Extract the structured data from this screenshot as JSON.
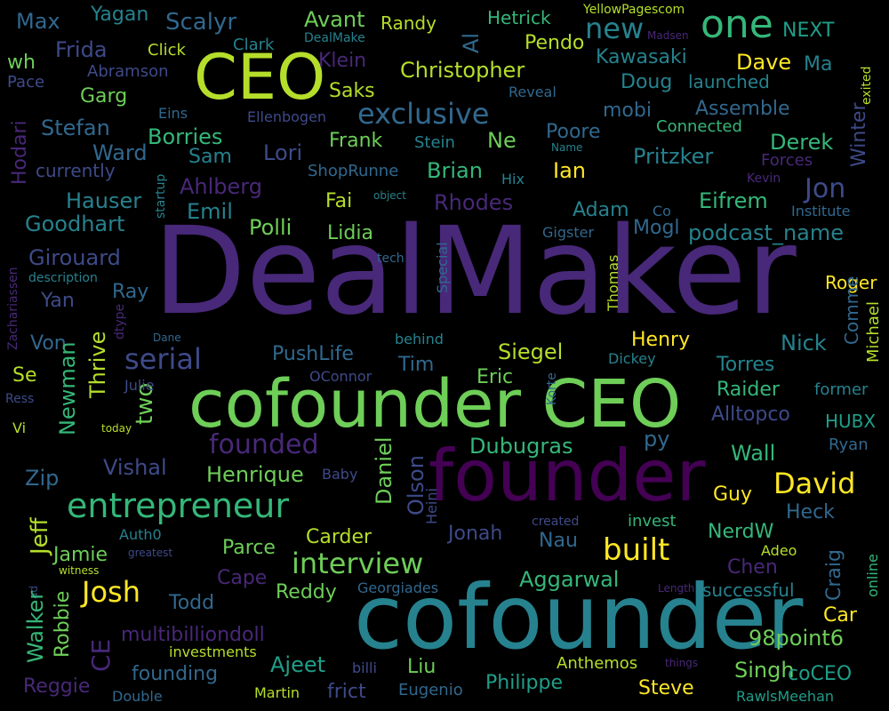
{
  "palette": {
    "purple_dark": "#440154",
    "indigo": "#482878",
    "blue_purple": "#3e4a89",
    "steel_blue": "#31688e",
    "teal_blue": "#26828e",
    "teal": "#1f9e89",
    "green_teal": "#35b779",
    "green": "#6ece58",
    "lime": "#b5de2b",
    "yellow": "#fde725",
    "background": "#000000"
  },
  "words": [
    {
      "text": "DealMaker",
      "color": "#482878"
    },
    {
      "text": "cofounder",
      "color": "#26828e"
    },
    {
      "text": "cofounder CEO",
      "color": "#6ece58"
    },
    {
      "text": "founder",
      "color": "#440154"
    },
    {
      "text": "CEO",
      "color": "#b5de2b"
    },
    {
      "text": "one",
      "color": "#35b779"
    },
    {
      "text": "entrepreneur",
      "color": "#35b779"
    },
    {
      "text": "interview",
      "color": "#6ece58"
    },
    {
      "text": "exclusive",
      "color": "#31688e"
    },
    {
      "text": "founded",
      "color": "#482878"
    },
    {
      "text": "David",
      "color": "#fde725"
    },
    {
      "text": "built",
      "color": "#fde725"
    },
    {
      "text": "Josh",
      "color": "#fde725"
    },
    {
      "text": "serial",
      "color": "#3e4a89"
    },
    {
      "text": "Jon",
      "color": "#3e4a89"
    },
    {
      "text": "new",
      "color": "#26828e"
    },
    {
      "text": "podcast_name",
      "color": "#26828e"
    },
    {
      "text": "Christopher",
      "color": "#b5de2b"
    },
    {
      "text": "Scalyr",
      "color": "#31688e"
    },
    {
      "text": "Avant",
      "color": "#6ece58"
    },
    {
      "text": "Max",
      "color": "#31688e"
    },
    {
      "text": "Yagan",
      "color": "#26828e"
    },
    {
      "text": "Randy",
      "color": "#b5de2b"
    },
    {
      "text": "Hetrick",
      "color": "#35b779"
    },
    {
      "text": "YellowPagescom",
      "color": "#b5de2b"
    },
    {
      "text": "NEXT",
      "color": "#1f9e89"
    },
    {
      "text": "DealMake",
      "color": "#26828e"
    },
    {
      "text": "Madsen",
      "color": "#482878"
    },
    {
      "text": "exited",
      "color": "#b5de2b"
    },
    {
      "text": "wh",
      "color": "#6ece58"
    },
    {
      "text": "Frida",
      "color": "#3e4a89"
    },
    {
      "text": "Click",
      "color": "#b5de2b"
    },
    {
      "text": "Clark",
      "color": "#26828e"
    },
    {
      "text": "Al",
      "color": "#31688e"
    },
    {
      "text": "Pendo",
      "color": "#b5de2b"
    },
    {
      "text": "Kawasaki",
      "color": "#26828e"
    },
    {
      "text": "Dave",
      "color": "#fde725"
    },
    {
      "text": "Ma",
      "color": "#26828e"
    },
    {
      "text": "Pace",
      "color": "#3e4a89"
    },
    {
      "text": "Abramson",
      "color": "#3e4a89"
    },
    {
      "text": "Klein",
      "color": "#482878"
    },
    {
      "text": "Doug",
      "color": "#26828e"
    },
    {
      "text": "launched",
      "color": "#26828e"
    },
    {
      "text": "Garg",
      "color": "#6ece58"
    },
    {
      "text": "Saks",
      "color": "#b5de2b"
    },
    {
      "text": "Reveal",
      "color": "#31688e"
    },
    {
      "text": "mobi",
      "color": "#31688e"
    },
    {
      "text": "Assemble",
      "color": "#31688e"
    },
    {
      "text": "Hodari",
      "color": "#482878"
    },
    {
      "text": "Eins",
      "color": "#31688e"
    },
    {
      "text": "Ellenbogen",
      "color": "#3e4a89"
    },
    {
      "text": "Stefan",
      "color": "#31688e"
    },
    {
      "text": "Borries",
      "color": "#35b779"
    },
    {
      "text": "Frank",
      "color": "#6ece58"
    },
    {
      "text": "Stein",
      "color": "#26828e"
    },
    {
      "text": "Ne",
      "color": "#6ece58"
    },
    {
      "text": "Poore",
      "color": "#31688e"
    },
    {
      "text": "Connected",
      "color": "#35b779"
    },
    {
      "text": "Derek",
      "color": "#35b779"
    },
    {
      "text": "Winter",
      "color": "#3e4a89"
    },
    {
      "text": "Ward",
      "color": "#31688e"
    },
    {
      "text": "Lori",
      "color": "#3e4a89"
    },
    {
      "text": "Name",
      "color": "#26828e"
    },
    {
      "text": "Forces",
      "color": "#482878"
    },
    {
      "text": "currently",
      "color": "#3e4a89"
    },
    {
      "text": "Sam",
      "color": "#26828e"
    },
    {
      "text": "ShopRunne",
      "color": "#31688e"
    },
    {
      "text": "Brian",
      "color": "#35b779"
    },
    {
      "text": "Ian",
      "color": "#fde725"
    },
    {
      "text": "Pritzker",
      "color": "#26828e"
    },
    {
      "text": "startup",
      "color": "#26828e"
    },
    {
      "text": "Hix",
      "color": "#26828e"
    },
    {
      "text": "Kevin",
      "color": "#482878"
    },
    {
      "text": "Hauser",
      "color": "#26828e"
    },
    {
      "text": "Ahlberg",
      "color": "#482878"
    },
    {
      "text": "Fai",
      "color": "#b5de2b"
    },
    {
      "text": "Rhodes",
      "color": "#482878"
    },
    {
      "text": "Eifrem",
      "color": "#35b779"
    },
    {
      "text": "Mogl",
      "color": "#31688e"
    },
    {
      "text": "object",
      "color": "#26828e"
    },
    {
      "text": "Institute",
      "color": "#31688e"
    },
    {
      "text": "Emil",
      "color": "#26828e"
    },
    {
      "text": "Adam",
      "color": "#26828e"
    },
    {
      "text": "Co",
      "color": "#31688e"
    },
    {
      "text": "Goodhart",
      "color": "#26828e"
    },
    {
      "text": "Polli",
      "color": "#6ece58"
    },
    {
      "text": "Lidia",
      "color": "#6ece58"
    },
    {
      "text": "Gigster",
      "color": "#31688e"
    },
    {
      "text": "Zachariassen",
      "color": "#482878"
    },
    {
      "text": "Girouard",
      "color": "#3e4a89"
    },
    {
      "text": "tech",
      "color": "#31688e"
    },
    {
      "text": "Special",
      "color": "#31688e"
    },
    {
      "text": "Thomas",
      "color": "#b5de2b"
    },
    {
      "text": "description",
      "color": "#26828e"
    },
    {
      "text": "Ray",
      "color": "#31688e"
    },
    {
      "text": "Roger",
      "color": "#fde725"
    },
    {
      "text": "Yan",
      "color": "#3e4a89"
    },
    {
      "text": "dtype",
      "color": "#482878"
    },
    {
      "text": "Comme",
      "color": "#31688e"
    },
    {
      "text": "Michael",
      "color": "#b5de2b"
    },
    {
      "text": "Thrive",
      "color": "#b5de2b"
    },
    {
      "text": "Dane",
      "color": "#31688e"
    },
    {
      "text": "Henry",
      "color": "#fde725"
    },
    {
      "text": "Von",
      "color": "#31688e"
    },
    {
      "text": "behind",
      "color": "#26828e"
    },
    {
      "text": "Nick",
      "color": "#26828e"
    },
    {
      "text": "PushLife",
      "color": "#31688e"
    },
    {
      "text": "Siegel",
      "color": "#b5de2b"
    },
    {
      "text": "Dickey",
      "color": "#26828e"
    },
    {
      "text": "Se",
      "color": "#b5de2b"
    },
    {
      "text": "Tim",
      "color": "#31688e"
    },
    {
      "text": "Torres",
      "color": "#26828e"
    },
    {
      "text": "two",
      "color": "#6ece58"
    },
    {
      "text": "OConnor",
      "color": "#3e4a89"
    },
    {
      "text": "Eric",
      "color": "#6ece58"
    },
    {
      "text": "Raider",
      "color": "#35b779"
    },
    {
      "text": "former",
      "color": "#26828e"
    },
    {
      "text": "Ress",
      "color": "#3e4a89"
    },
    {
      "text": "Julie",
      "color": "#3e4a89"
    },
    {
      "text": "Korte",
      "color": "#31688e"
    },
    {
      "text": "Alltopco",
      "color": "#3e4a89"
    },
    {
      "text": "HUBX",
      "color": "#1f9e89"
    },
    {
      "text": "Newman",
      "color": "#35b779"
    },
    {
      "text": "Vi",
      "color": "#b5de2b"
    },
    {
      "text": "today",
      "color": "#b5de2b"
    },
    {
      "text": "py",
      "color": "#31688e"
    },
    {
      "text": "Ryan",
      "color": "#31688e"
    },
    {
      "text": "Dubugras",
      "color": "#35b779"
    },
    {
      "text": "Wall",
      "color": "#35b779"
    },
    {
      "text": "Daniel",
      "color": "#6ece58"
    },
    {
      "text": "Olson",
      "color": "#3e4a89"
    },
    {
      "text": "Vishal",
      "color": "#3e4a89"
    },
    {
      "text": "Henrique",
      "color": "#6ece58"
    },
    {
      "text": "Zip",
      "color": "#31688e"
    },
    {
      "text": "Baby",
      "color": "#3e4a89"
    },
    {
      "text": "Heini",
      "color": "#3e4a89"
    },
    {
      "text": "Guy",
      "color": "#fde725"
    },
    {
      "text": "Jeff",
      "color": "#b5de2b"
    },
    {
      "text": "Heck",
      "color": "#31688e"
    },
    {
      "text": "created",
      "color": "#3e4a89"
    },
    {
      "text": "invest",
      "color": "#35b779"
    },
    {
      "text": "Auth0",
      "color": "#26828e"
    },
    {
      "text": "Carder",
      "color": "#b5de2b"
    },
    {
      "text": "Jonah",
      "color": "#3e4a89"
    },
    {
      "text": "NerdW",
      "color": "#35b779"
    },
    {
      "text": "Nau",
      "color": "#31688e"
    },
    {
      "text": "Parce",
      "color": "#6ece58"
    },
    {
      "text": "Jamie",
      "color": "#6ece58"
    },
    {
      "text": "greatest",
      "color": "#3e4a89"
    },
    {
      "text": "Adeo",
      "color": "#b5de2b"
    },
    {
      "text": "Craig",
      "color": "#31688e"
    },
    {
      "text": "Chen",
      "color": "#482878"
    },
    {
      "text": "witness",
      "color": "#b5de2b"
    },
    {
      "text": "ad",
      "color": "#3e4a89"
    },
    {
      "text": "online",
      "color": "#35b779"
    },
    {
      "text": "Cape",
      "color": "#482878"
    },
    {
      "text": "Reddy",
      "color": "#6ece58"
    },
    {
      "text": "Aggarwal",
      "color": "#35b779"
    },
    {
      "text": "Georgiades",
      "color": "#31688e"
    },
    {
      "text": "Length",
      "color": "#482878"
    },
    {
      "text": "successful",
      "color": "#26828e"
    },
    {
      "text": "Walker",
      "color": "#35b779"
    },
    {
      "text": "Robbie",
      "color": "#6ece58"
    },
    {
      "text": "Todd",
      "color": "#31688e"
    },
    {
      "text": "Car",
      "color": "#fde725"
    },
    {
      "text": "CE",
      "color": "#482878"
    },
    {
      "text": "multibilliondoll",
      "color": "#482878"
    },
    {
      "text": "98point6",
      "color": "#6ece58"
    },
    {
      "text": "investments",
      "color": "#b5de2b"
    },
    {
      "text": "Ajeet",
      "color": "#1f9e89"
    },
    {
      "text": "billi",
      "color": "#3e4a89"
    },
    {
      "text": "Liu",
      "color": "#6ece58"
    },
    {
      "text": "founding",
      "color": "#31688e"
    },
    {
      "text": "Anthemos",
      "color": "#b5de2b"
    },
    {
      "text": "things",
      "color": "#482878"
    },
    {
      "text": "Singh",
      "color": "#6ece58"
    },
    {
      "text": "coCEO",
      "color": "#1f9e89"
    },
    {
      "text": "Reggie",
      "color": "#482878"
    },
    {
      "text": "frict",
      "color": "#3e4a89"
    },
    {
      "text": "Eugenio",
      "color": "#31688e"
    },
    {
      "text": "Philippe",
      "color": "#1f9e89"
    },
    {
      "text": "Steve",
      "color": "#fde725"
    },
    {
      "text": "Double",
      "color": "#31688e"
    },
    {
      "text": "Martin",
      "color": "#b5de2b"
    },
    {
      "text": "RawlsMeehan",
      "color": "#1f9e89"
    }
  ]
}
